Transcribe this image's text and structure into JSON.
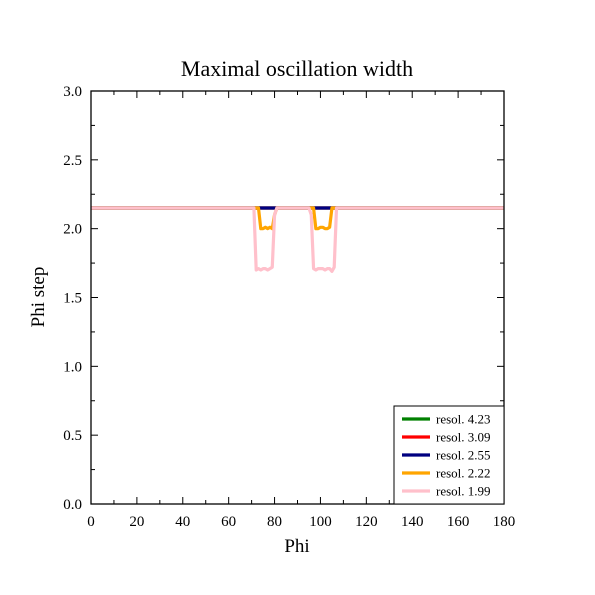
{
  "chart_data": {
    "type": "line",
    "title": "Maximal oscillation width",
    "xlabel": "Phi",
    "ylabel": "Phi step",
    "xlim": [
      0,
      180
    ],
    "ylim": [
      0,
      3.0
    ],
    "xticks": [
      0,
      20,
      40,
      60,
      80,
      100,
      120,
      140,
      160,
      180
    ],
    "yticks": [
      0.0,
      0.5,
      1.0,
      1.5,
      2.0,
      2.5,
      3.0
    ],
    "xtick_labels": [
      "0",
      "20",
      "40",
      "60",
      "80",
      "100",
      "120",
      "140",
      "160",
      "180"
    ],
    "ytick_labels": [
      "0.0",
      "0.5",
      "1.0",
      "1.5",
      "2.0",
      "2.5",
      "3.0"
    ],
    "grid": false,
    "legend_position": "lower-right",
    "series": [
      {
        "name": "resol. 4.23",
        "color": "#008000",
        "x": [
          0,
          180
        ],
        "y": [
          2.15,
          2.15
        ]
      },
      {
        "name": "resol. 3.09",
        "color": "#ff0000",
        "x": [
          0,
          180
        ],
        "y": [
          2.15,
          2.15
        ]
      },
      {
        "name": "resol. 2.55",
        "color": "#000080",
        "x": [
          0,
          180
        ],
        "y": [
          2.15,
          2.15
        ]
      },
      {
        "name": "resol. 2.22",
        "color": "#ffa500",
        "x": [
          0,
          73,
          74,
          75,
          76,
          77,
          78,
          79,
          80,
          81,
          82,
          97,
          98,
          99,
          100,
          101,
          102,
          103,
          104,
          105,
          106,
          180
        ],
        "y": [
          2.15,
          2.15,
          2.0,
          2.0,
          2.01,
          2.0,
          2.01,
          2.0,
          2.1,
          2.15,
          2.15,
          2.15,
          2.0,
          2.0,
          2.01,
          2.01,
          2.0,
          2.0,
          2.01,
          2.15,
          2.15,
          2.15
        ]
      },
      {
        "name": "resol. 1.99",
        "color": "#ffc0cb",
        "x": [
          0,
          71,
          72,
          73,
          74,
          75,
          76,
          77,
          78,
          79,
          80,
          81,
          82,
          95,
          96,
          97,
          98,
          99,
          100,
          101,
          102,
          103,
          104,
          105,
          106,
          107,
          108,
          180
        ],
        "y": [
          2.15,
          2.15,
          1.7,
          1.71,
          1.7,
          1.71,
          1.71,
          1.7,
          1.71,
          1.72,
          2.1,
          2.15,
          2.15,
          2.15,
          2.1,
          1.71,
          1.7,
          1.71,
          1.71,
          1.71,
          1.7,
          1.71,
          1.71,
          1.69,
          1.72,
          2.15,
          2.15,
          2.15
        ]
      }
    ]
  }
}
